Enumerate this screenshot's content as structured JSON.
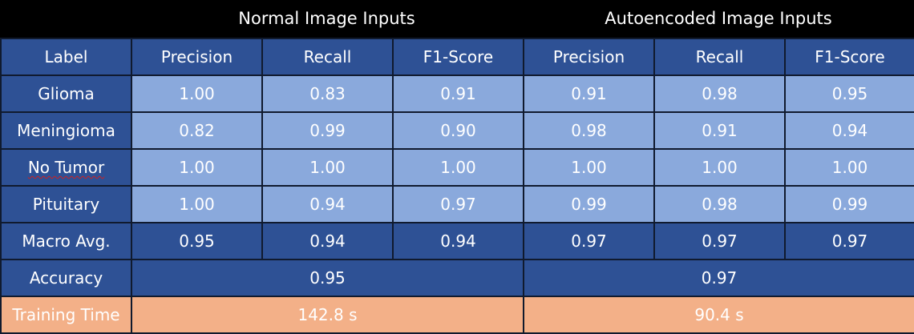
{
  "group_headers": {
    "normal": "Normal Image Inputs",
    "autoencoded": "Autoencoded Image Inputs"
  },
  "columns": [
    "Label",
    "Precision",
    "Recall",
    "F1-Score",
    "Precision",
    "Recall",
    "F1-Score"
  ],
  "rows": [
    {
      "label": "Glioma",
      "values": [
        "1.00",
        "0.83",
        "0.91",
        "0.91",
        "0.98",
        "0.95"
      ]
    },
    {
      "label": "Meningioma",
      "values": [
        "0.82",
        "0.99",
        "0.90",
        "0.98",
        "0.91",
        "0.94"
      ]
    },
    {
      "label": "No Tumor",
      "values": [
        "1.00",
        "1.00",
        "1.00",
        "1.00",
        "1.00",
        "1.00"
      ]
    },
    {
      "label": "Pituitary",
      "values": [
        "1.00",
        "0.94",
        "0.97",
        "0.99",
        "0.98",
        "0.99"
      ]
    },
    {
      "label": "Macro Avg.",
      "values": [
        "0.95",
        "0.94",
        "0.94",
        "0.97",
        "0.97",
        "0.97"
      ]
    }
  ],
  "accuracy": {
    "label": "Accuracy",
    "normal": "0.95",
    "autoencoded": "0.97"
  },
  "training_time": {
    "label": "Training Time",
    "normal": "142.8 s",
    "autoencoded": "90.4 s"
  },
  "colors": {
    "header_bg": "#000000",
    "dark_cell": "#2e5195",
    "light_cell": "#8aa9dc",
    "orange_cell": "#f3b088",
    "text": "#ffffff"
  }
}
